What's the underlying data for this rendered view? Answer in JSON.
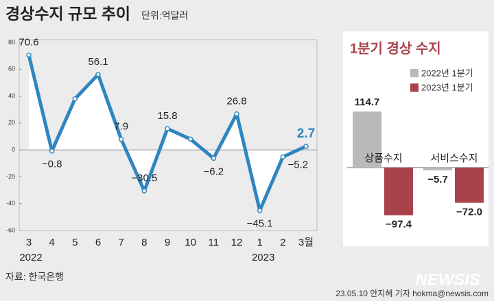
{
  "title": "경상수지 규모 추이",
  "subtitle": "단위:억달러",
  "source": "자료: 한국은행",
  "credit": "23.05.10 안지혜 기자 hokma@newsis.com",
  "watermark": "NEWSIS",
  "chart_data": [
    {
      "type": "line",
      "categories": [
        "3",
        "4",
        "5",
        "6",
        "7",
        "8",
        "9",
        "10",
        "11",
        "12",
        "1",
        "2",
        "3월"
      ],
      "year_labels": [
        "2022",
        "2023"
      ],
      "values": [
        70.6,
        -0.8,
        38,
        56.1,
        7.9,
        -30.5,
        15.8,
        8,
        -6.2,
        26.8,
        -45.1,
        -5.2,
        2.7
      ],
      "value_labels": [
        "70.6",
        "−0.8",
        null,
        "56.1",
        "7.9",
        "−30.5",
        "15.8",
        null,
        "−6.2",
        "26.8",
        "−45.1",
        "−5.2",
        "2.7"
      ],
      "color": "#2f86c0",
      "ylim": [
        -60,
        80
      ],
      "yticks": [
        80,
        60,
        40,
        20,
        0,
        -20,
        -40,
        -60
      ]
    },
    {
      "type": "bar",
      "title": "1분기 경상 수지",
      "categories": [
        "상품수지",
        "서비스수지"
      ],
      "series": [
        {
          "name": "2022년 1분기",
          "color": "#b9b9b9",
          "values": [
            114.7,
            -5.7
          ],
          "value_labels": [
            "114.7",
            "−5.7"
          ]
        },
        {
          "name": "2023년 1분기",
          "color": "#a9424a",
          "values": [
            -97.4,
            -72.0
          ],
          "value_labels": [
            "−97.4",
            "−72.0"
          ]
        }
      ]
    }
  ]
}
